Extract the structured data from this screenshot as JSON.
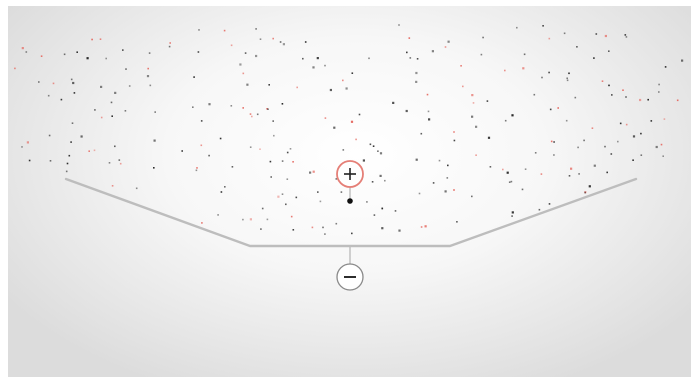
{
  "game": {
    "colors": {
      "background_center": "#ffffff",
      "background_edge": "#dcdcdc",
      "ramp_line": "#bdbdbd",
      "particle_dark": "#2b2b2b",
      "particle_red": "#e56b63",
      "plus_ring": "#e57f77",
      "minus_ring": "#8a8a8a",
      "ball": "#111111"
    },
    "plus_button": {
      "icon": "plus-icon"
    },
    "minus_button": {
      "icon": "minus-icon"
    }
  }
}
